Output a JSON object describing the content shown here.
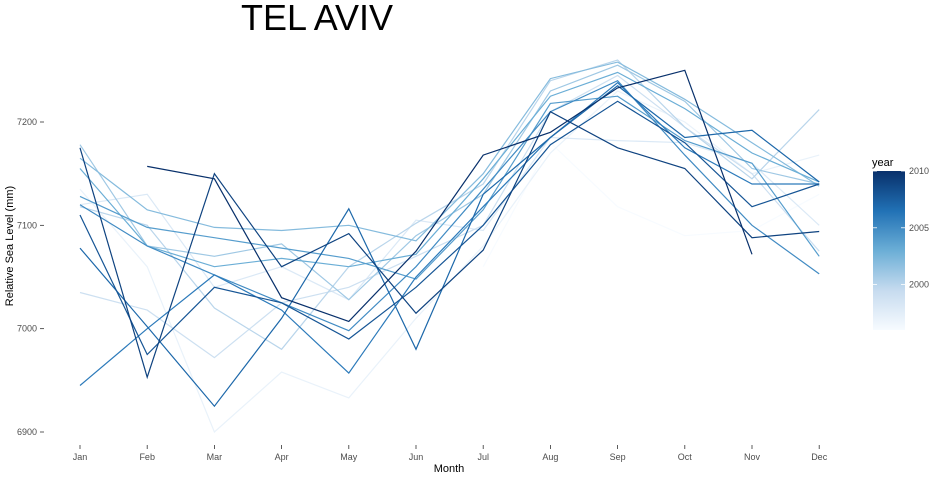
{
  "chart_data": {
    "type": "line",
    "title": "TEL AVIV",
    "xlabel": "Month",
    "ylabel": "Relative Sea Level (mm)",
    "categories": [
      "Jan",
      "Feb",
      "Mar",
      "Apr",
      "May",
      "Jun",
      "Jul",
      "Aug",
      "Sep",
      "Oct",
      "Nov",
      "Dec"
    ],
    "y_ticks": [
      6900,
      7000,
      7100,
      7200
    ],
    "ylim": [
      6885,
      7265
    ],
    "grid": false,
    "legend": {
      "title": "year",
      "position": "right",
      "type": "colorbar",
      "range": [
        1996,
        2010
      ],
      "ticks": [
        2000,
        2005,
        2010
      ],
      "color_low": "#f7fbff",
      "color_high": "#08306b"
    },
    "series": [
      {
        "year": 1996,
        "values": [
          null,
          null,
          null,
          null,
          null,
          null,
          7060,
          7180,
          7118,
          7090,
          7095,
          7130
        ]
      },
      {
        "year": 1997,
        "values": [
          7135,
          7060,
          6900,
          6958,
          6933,
          7010,
          7080,
          7170,
          7230,
          7200,
          7150,
          7168
        ]
      },
      {
        "year": 1998,
        "values": [
          7120,
          7130,
          7040,
          7060,
          7028,
          7105,
          7095,
          7185,
          7182,
          7180,
          7160,
          7100
        ]
      },
      {
        "year": 1999,
        "values": [
          7035,
          7018,
          6972,
          7025,
          7040,
          7070,
          7100,
          7210,
          7245,
          7195,
          7150,
          7075
        ]
      },
      {
        "year": 2000,
        "values": [
          7118,
          7100,
          7020,
          6980,
          7060,
          7102,
          7140,
          7240,
          7260,
          7195,
          7145,
          7212
        ]
      },
      {
        "year": 2001,
        "values": [
          7178,
          7080,
          7070,
          7082,
          7028,
          7090,
          7130,
          7230,
          7255,
          7220,
          7155,
          7140
        ]
      },
      {
        "year": 2002,
        "values": [
          7165,
          7115,
          7098,
          7095,
          7100,
          7085,
          7150,
          7242,
          7258,
          7222,
          7180,
          7138
        ]
      },
      {
        "year": 2003,
        "values": [
          7155,
          7080,
          7060,
          7068,
          7060,
          7072,
          7145,
          7225,
          7248,
          7213,
          7170,
          7142
        ]
      },
      {
        "year": 2004,
        "values": [
          7128,
          7098,
          7088,
          7078,
          7068,
          7048,
          7115,
          7218,
          7225,
          7182,
          7160,
          7070
        ]
      },
      {
        "year": 2005,
        "values": [
          7120,
          7080,
          7052,
          7025,
          6998,
          7060,
          7135,
          7210,
          7240,
          7168,
          7100,
          7053
        ]
      },
      {
        "year": 2006,
        "values": [
          6945,
          7000,
          7052,
          7018,
          6957,
          7050,
          7118,
          7185,
          7238,
          7175,
          7140,
          7140
        ]
      },
      {
        "year": 2007,
        "values": [
          7078,
          7002,
          6925,
          7010,
          7116,
          6980,
          7130,
          7185,
          7235,
          7185,
          7192,
          7142
        ]
      },
      {
        "year": 2008,
        "values": [
          7110,
          6975,
          7040,
          7025,
          6990,
          7040,
          7100,
          7178,
          7220,
          7180,
          7118,
          7140
        ]
      },
      {
        "year": 2009,
        "values": [
          7175,
          6953,
          7150,
          7060,
          7092,
          7015,
          7076,
          7210,
          7175,
          7155,
          7088,
          7094
        ]
      },
      {
        "year": 2010,
        "values": [
          null,
          7157,
          7145,
          7030,
          7007,
          7075,
          7168,
          7190,
          7233,
          7250,
          7072,
          null
        ]
      }
    ]
  }
}
